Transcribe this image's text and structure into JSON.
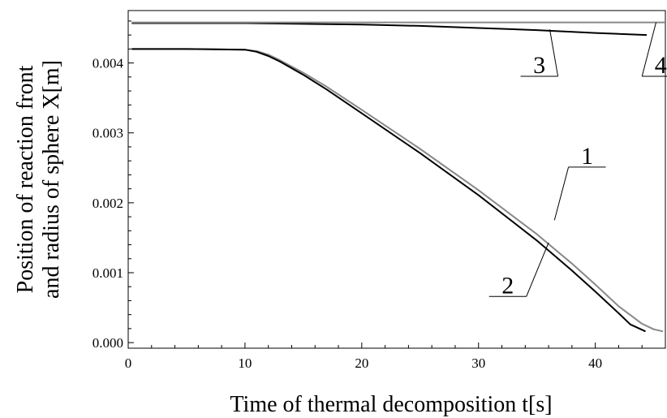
{
  "chart_data": {
    "type": "line",
    "title": "",
    "xlabel": "Time of thermal decomposition t[s]",
    "ylabel_line1": "Position of reaction front",
    "ylabel_line2": "and radius of sphere X[m]",
    "xlim": [
      0,
      46
    ],
    "ylim": [
      -8e-05,
      0.00475
    ],
    "x_ticks": [
      0,
      10,
      20,
      30,
      40
    ],
    "x_tick_labels": [
      "0",
      "10",
      "20",
      "30",
      "40"
    ],
    "y_ticks": [
      0.0,
      0.001,
      0.002,
      0.003,
      0.004
    ],
    "y_tick_labels": [
      "0.000",
      "0.001",
      "0.002",
      "0.003",
      "0.004"
    ],
    "grid": false,
    "series": [
      {
        "label": "1",
        "color": "#888888",
        "x": [
          0.3,
          5,
          10,
          11,
          12,
          13,
          15,
          17,
          20,
          25,
          30,
          35,
          38,
          40,
          42,
          44,
          45,
          45.8
        ],
        "y": [
          0.0042,
          0.0042,
          0.00419,
          0.00417,
          0.00412,
          0.00404,
          0.00386,
          0.00366,
          0.00333,
          0.00277,
          0.00218,
          0.00155,
          0.00113,
          0.00083,
          0.00052,
          0.00027,
          0.00019,
          0.00016
        ]
      },
      {
        "label": "2",
        "color": "#000000",
        "x": [
          0.3,
          5,
          10,
          11,
          12,
          13,
          15,
          17,
          20,
          25,
          30,
          35,
          38,
          40,
          42,
          43,
          44.3
        ],
        "y": [
          0.0042,
          0.0042,
          0.00419,
          0.00416,
          0.0041,
          0.00402,
          0.00383,
          0.00362,
          0.00328,
          0.00271,
          0.00211,
          0.00146,
          0.00103,
          0.00073,
          0.00042,
          0.00026,
          0.00016
        ]
      },
      {
        "label": "3",
        "color": "#000000",
        "x": [
          0.3,
          10,
          15,
          20,
          25,
          30,
          35,
          40,
          44.4
        ],
        "y": [
          0.00457,
          0.00457,
          0.00456,
          0.00455,
          0.00453,
          0.0045,
          0.00447,
          0.00443,
          0.0044
        ]
      },
      {
        "label": "4",
        "color": "#888888",
        "x": [
          0.3,
          46
        ],
        "y": [
          0.00458,
          0.00458
        ]
      }
    ],
    "annotations": [
      {
        "text": "1",
        "label_x": 39.3,
        "label_y": 0.00251,
        "target_x": 36.5,
        "target_y": 0.00175
      },
      {
        "text": "2",
        "label_x": 32.5,
        "label_y": 0.00066,
        "target_x": 36.0,
        "target_y": 0.00143
      },
      {
        "text": "3",
        "label_x": 35.2,
        "label_y": 0.00381,
        "target_x": 36.1,
        "target_y": 0.00448
      },
      {
        "text": "4",
        "label_x": 45.6,
        "label_y": 0.00381,
        "target_x": 45.2,
        "target_y": 0.00458
      }
    ]
  }
}
